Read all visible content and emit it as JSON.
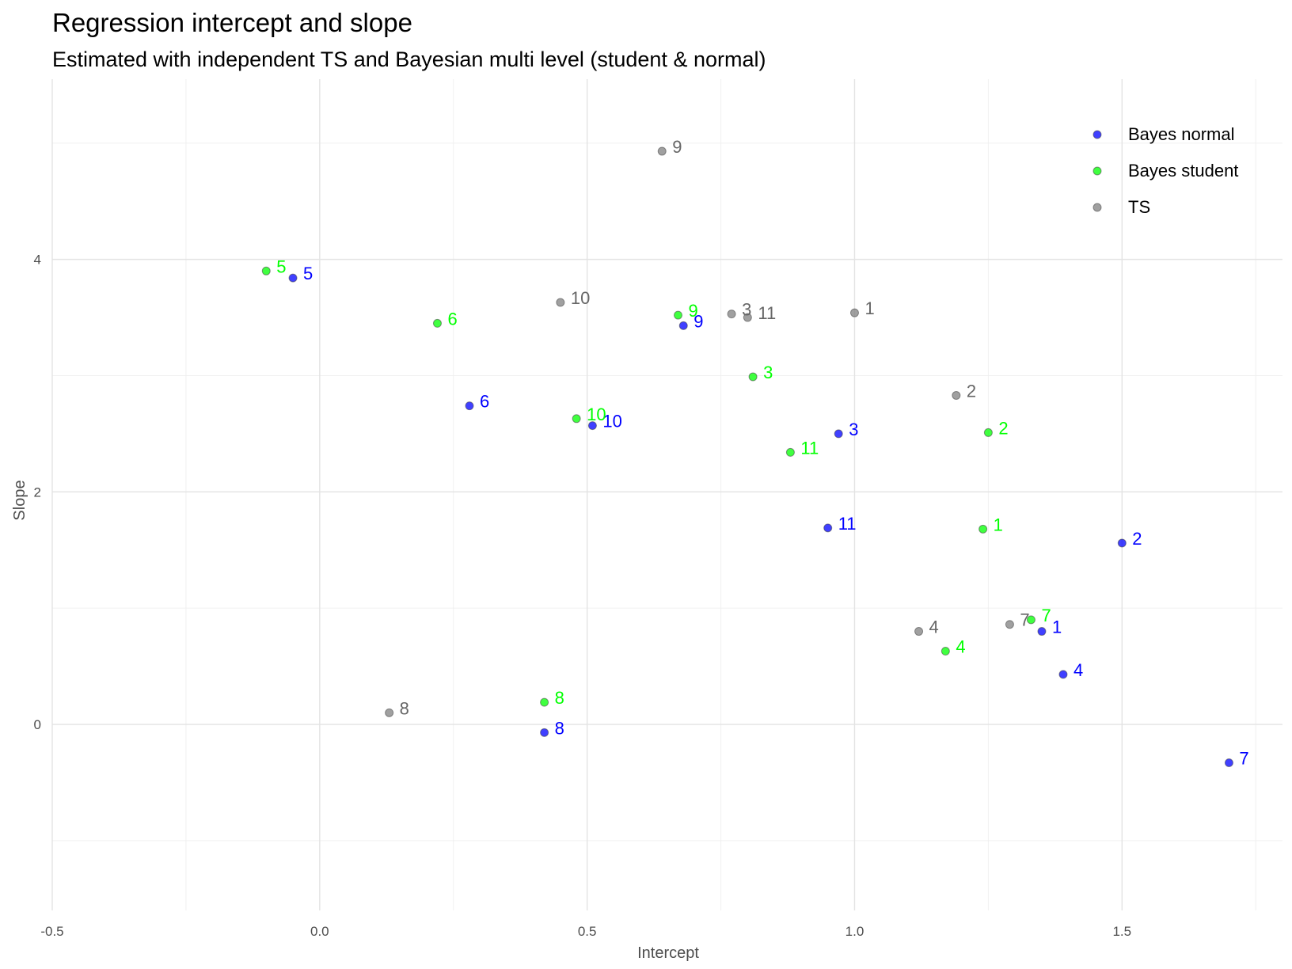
{
  "chart_data": {
    "type": "scatter",
    "title": "Regression intercept and slope",
    "subtitle": "Estimated with independent TS and Bayesian multi level (student & normal)",
    "xlabel": "Intercept",
    "ylabel": "Slope",
    "xlim": [
      -0.5,
      1.8
    ],
    "ylim": [
      -1.6,
      5.55
    ],
    "x_ticks": [
      -0.5,
      0.0,
      0.5,
      1.0,
      1.5
    ],
    "x_tick_labels": [
      "-0.5",
      "0.0",
      "0.5",
      "1.0",
      "1.5"
    ],
    "y_ticks": [
      0,
      2,
      4
    ],
    "y_tick_labels": [
      "0",
      "2",
      "4"
    ],
    "grid": true,
    "legend_position": "top-right",
    "series": [
      {
        "name": "Bayes normal",
        "color": "#0000ff",
        "points": [
          {
            "label": "1",
            "x": 1.35,
            "y": 0.8
          },
          {
            "label": "2",
            "x": 1.5,
            "y": 1.56
          },
          {
            "label": "3",
            "x": 0.97,
            "y": 2.5
          },
          {
            "label": "4",
            "x": 1.39,
            "y": 0.43
          },
          {
            "label": "5",
            "x": -0.05,
            "y": 3.84
          },
          {
            "label": "6",
            "x": 0.28,
            "y": 2.74
          },
          {
            "label": "7",
            "x": 1.7,
            "y": -0.33
          },
          {
            "label": "8",
            "x": 0.42,
            "y": -0.07
          },
          {
            "label": "9",
            "x": 0.68,
            "y": 3.43
          },
          {
            "label": "10",
            "x": 0.51,
            "y": 2.57
          },
          {
            "label": "11",
            "x": 0.95,
            "y": 1.69
          }
        ]
      },
      {
        "name": "Bayes student",
        "color": "#00ff00",
        "points": [
          {
            "label": "1",
            "x": 1.24,
            "y": 1.68
          },
          {
            "label": "2",
            "x": 1.25,
            "y": 2.51
          },
          {
            "label": "3",
            "x": 0.81,
            "y": 2.99
          },
          {
            "label": "4",
            "x": 1.17,
            "y": 0.63
          },
          {
            "label": "5",
            "x": -0.1,
            "y": 3.9
          },
          {
            "label": "6",
            "x": 0.22,
            "y": 3.45
          },
          {
            "label": "7",
            "x": 1.33,
            "y": 0.9
          },
          {
            "label": "8",
            "x": 0.42,
            "y": 0.19
          },
          {
            "label": "9",
            "x": 0.67,
            "y": 3.52
          },
          {
            "label": "10",
            "x": 0.48,
            "y": 2.63
          },
          {
            "label": "11",
            "x": 0.88,
            "y": 2.34
          }
        ]
      },
      {
        "name": "TS",
        "color": "#808080",
        "points": [
          {
            "label": "1",
            "x": 1.0,
            "y": 3.54
          },
          {
            "label": "2",
            "x": 1.19,
            "y": 2.83
          },
          {
            "label": "3",
            "x": 0.77,
            "y": 3.53
          },
          {
            "label": "4",
            "x": 1.12,
            "y": 0.8
          },
          {
            "label": "7",
            "x": 1.29,
            "y": 0.86
          },
          {
            "label": "8",
            "x": 0.13,
            "y": 0.1
          },
          {
            "label": "9",
            "x": 0.64,
            "y": 4.93
          },
          {
            "label": "10",
            "x": 0.45,
            "y": 3.63
          },
          {
            "label": "11",
            "x": 0.8,
            "y": 3.5
          }
        ]
      }
    ]
  }
}
